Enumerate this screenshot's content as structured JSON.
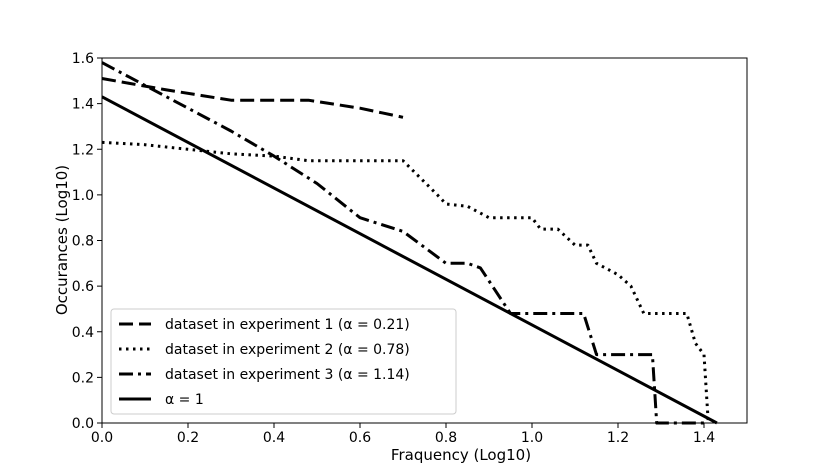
{
  "chart_data": {
    "type": "line",
    "title": "",
    "xlabel": "Fraquency  (Log10)",
    "ylabel": "Occurances  (Log10)",
    "xlim": [
      0.0,
      1.5
    ],
    "ylim": [
      0.0,
      1.6
    ],
    "xticks": [
      "0.0",
      "0.2",
      "0.4",
      "0.6",
      "0.8",
      "1.0",
      "1.2",
      "1.4"
    ],
    "yticks": [
      "0.0",
      "0.2",
      "0.4",
      "0.6",
      "0.8",
      "1.0",
      "1.2",
      "1.4",
      "1.6"
    ],
    "grid": false,
    "legend_position": "lower-left",
    "series": [
      {
        "name": "dataset in experiment 1 (α = 0.21)",
        "style": "dashed",
        "x": [
          0.0,
          0.15,
          0.3,
          0.48,
          0.6,
          0.7
        ],
        "y": [
          1.51,
          1.46,
          1.415,
          1.415,
          1.38,
          1.34
        ]
      },
      {
        "name": "dataset in experiment 2 (α = 0.78)",
        "style": "dotted",
        "x": [
          0.0,
          0.1,
          0.2,
          0.3,
          0.4,
          0.48,
          0.6,
          0.7,
          0.78,
          0.8,
          0.85,
          0.9,
          1.0,
          1.02,
          1.06,
          1.1,
          1.13,
          1.15,
          1.2,
          1.23,
          1.26,
          1.3,
          1.36,
          1.38,
          1.4,
          1.41
        ],
        "y": [
          1.23,
          1.22,
          1.2,
          1.18,
          1.17,
          1.15,
          1.15,
          1.15,
          1.0,
          0.96,
          0.95,
          0.9,
          0.9,
          0.85,
          0.85,
          0.78,
          0.78,
          0.7,
          0.65,
          0.6,
          0.48,
          0.48,
          0.48,
          0.35,
          0.3,
          0.0
        ]
      },
      {
        "name": "dataset in experiment 3 (α = 1.14)",
        "style": "dashdot",
        "x": [
          0.0,
          0.1,
          0.2,
          0.3,
          0.4,
          0.5,
          0.6,
          0.7,
          0.8,
          0.85,
          0.88,
          0.95,
          1.05,
          1.12,
          1.15,
          1.25,
          1.28,
          1.29,
          1.35,
          1.41
        ],
        "y": [
          1.58,
          1.48,
          1.38,
          1.28,
          1.17,
          1.05,
          0.9,
          0.84,
          0.7,
          0.7,
          0.68,
          0.48,
          0.48,
          0.48,
          0.3,
          0.3,
          0.3,
          0.0,
          0.0,
          0.0
        ]
      },
      {
        "name": "α = 1",
        "style": "solid",
        "x": [
          0.0,
          1.43
        ],
        "y": [
          1.43,
          0.0
        ]
      }
    ]
  }
}
